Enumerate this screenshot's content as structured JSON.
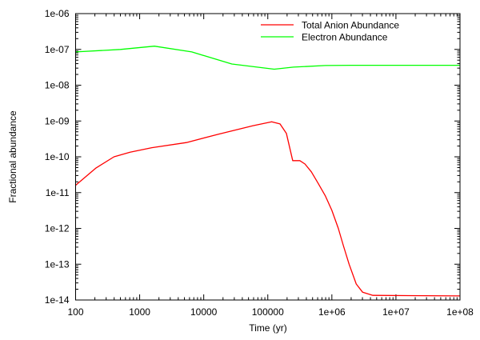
{
  "chart_data": {
    "type": "line",
    "title": "",
    "xlabel": "Time (yr)",
    "ylabel": "Fractional abundance",
    "xscale": "log",
    "yscale": "log",
    "xlim": [
      100,
      100000000
    ],
    "ylim": [
      1e-14,
      1e-06
    ],
    "grid": false,
    "legend_position": "top-right",
    "x_tick_labels": [
      "100",
      "1000",
      "10000",
      "100000",
      "1e+06",
      "1e+07",
      "1e+08"
    ],
    "y_tick_labels": [
      "1e-14",
      "1e-13",
      "1e-12",
      "1e-11",
      "1e-10",
      "1e-09",
      "1e-08",
      "1e-07",
      "1e-06"
    ],
    "series": [
      {
        "name": "Total Anion Abundance",
        "color": "#ff0000",
        "x": [
          100,
          209,
          398,
          708,
          1549,
          5370,
          17000,
          58900,
          115000,
          155000,
          195000,
          245000,
          316000,
          380000,
          479000,
          603000,
          794000,
          1000000,
          1260000,
          1510000,
          1860000,
          2400000,
          3020000,
          4370000,
          100000000
        ],
        "y": [
          1.6e-11,
          4.9e-11,
          1e-10,
          1.35e-10,
          1.8e-10,
          2.5e-10,
          4.3e-10,
          7.4e-10,
          9.5e-10,
          8.3e-10,
          4.5e-10,
          7.8e-11,
          7.8e-11,
          6.3e-11,
          3.8e-11,
          1.9e-11,
          8e-12,
          3.2e-12,
          1e-12,
          3.3e-13,
          1e-13,
          2.8e-14,
          1.65e-14,
          1.35e-14,
          1.3e-14
        ]
      },
      {
        "name": "Electron Abundance",
        "color": "#00ff00",
        "x": [
          100,
          500,
          1700,
          6500,
          27500,
          126000,
          251000,
          794000,
          2000000,
          100000000
        ],
        "y": [
          8.5e-08,
          1e-07,
          1.23e-07,
          8.5e-08,
          3.9e-08,
          2.8e-08,
          3.2e-08,
          3.55e-08,
          3.6e-08,
          3.6e-08
        ]
      }
    ]
  }
}
